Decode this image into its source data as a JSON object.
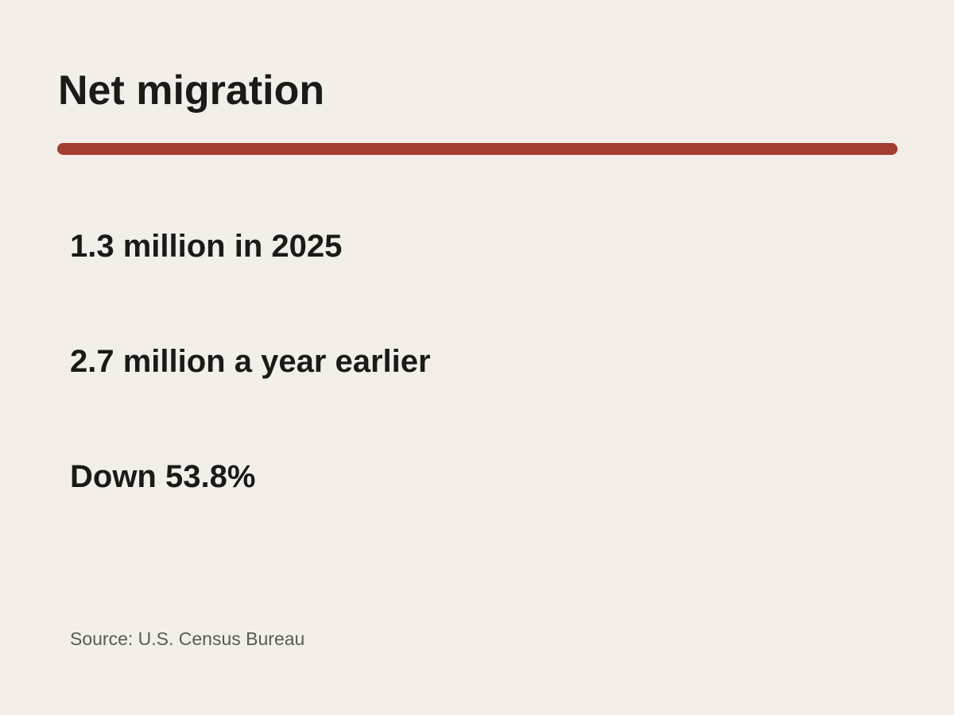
{
  "header": {
    "title": "Net migration"
  },
  "facts": [
    "1.3 million in 2025",
    "2.7 million a year earlier",
    "Down 53.8%"
  ],
  "source": "Source: U.S. Census Bureau"
}
